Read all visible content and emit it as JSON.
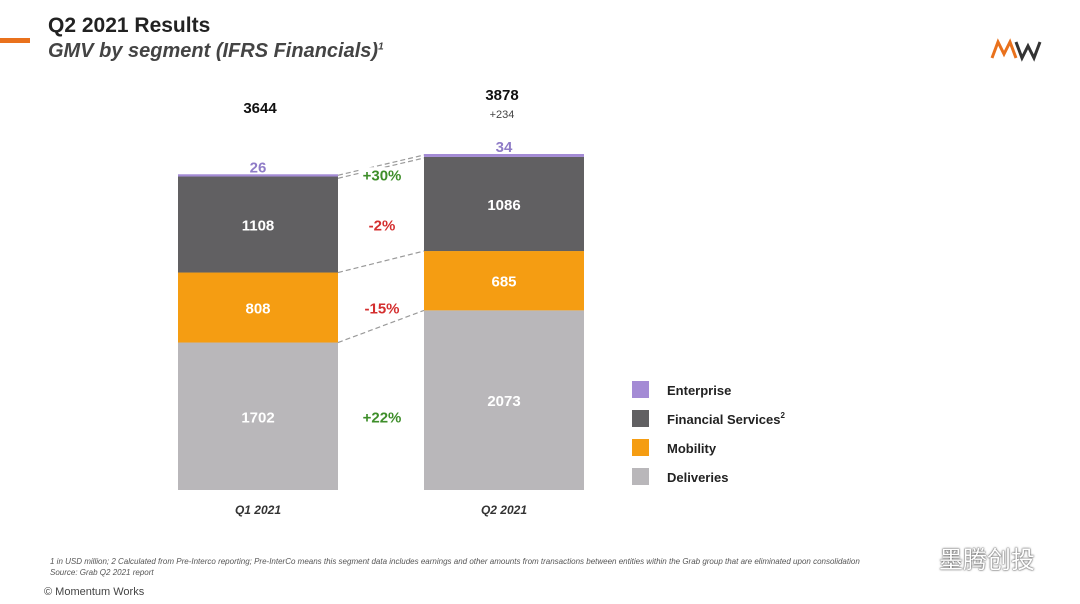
{
  "header": {
    "title": "Q2 2021 Results",
    "subtitle": "GMV by segment (IFRS Financials)",
    "subtitle_sup": "1",
    "accent_color": "#E9711C"
  },
  "chart_data": {
    "type": "bar",
    "stacked": true,
    "categories": [
      "Q1 2021",
      "Q2 2021"
    ],
    "series": [
      {
        "name": "Deliveries",
        "values": [
          1702,
          2073
        ],
        "color": "#B9B7BA",
        "change": "+22%",
        "change_color": "#3E8E2A"
      },
      {
        "name": "Mobility",
        "values": [
          808,
          685
        ],
        "color": "#F59D12",
        "change": "-15%",
        "change_color": "#D42F2F"
      },
      {
        "name": "Financial Services",
        "values": [
          1108,
          1086
        ],
        "color": "#616062",
        "change": "-2%",
        "change_color": "#D42F2F"
      },
      {
        "name": "Enterprise",
        "values": [
          26,
          34
        ],
        "color": "#A48BD5",
        "change": "+30%",
        "change_color": "#3E8E2A"
      }
    ],
    "totals": [
      "3644",
      "3878"
    ],
    "total_delta": "+234",
    "legend": {
      "position": "right",
      "order": [
        "Enterprise",
        "Financial Services",
        "Mobility",
        "Deliveries"
      ],
      "sup": {
        "Financial Services": "2"
      }
    },
    "ylim": [
      0,
      3878
    ],
    "grid": false
  },
  "footer": {
    "footnote_line1": "1 in USD million; 2 Calculated from Pre-Interco reporting; Pre-InterCo means this segment data includes earnings and other amounts from transactions between entities within the Grab group that are eliminated upon consolidation",
    "footnote_line2": "Source: Grab Q2 2021 report",
    "copyright": "© Momentum Works"
  },
  "watermark": {
    "text": "墨腾创投"
  }
}
